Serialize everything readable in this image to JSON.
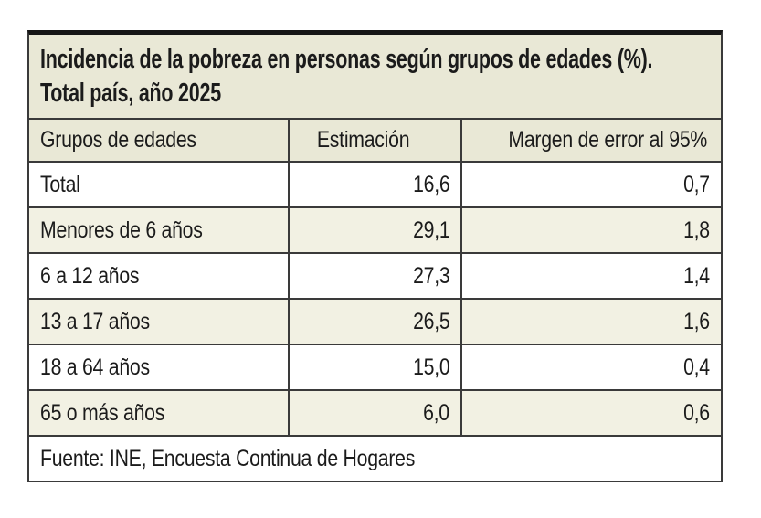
{
  "colors": {
    "band_background": "#e9e8d6",
    "alt_row_background": "#f2f1e3",
    "white_row_background": "#ffffff",
    "border": "#3a3a3a",
    "top_border": "#161616",
    "text": "#1b1b1b"
  },
  "table": {
    "title_line1": "Incidencia de la pobreza en personas según grupos de edades (%).",
    "title_line2": "Total país, año 2025",
    "columns": {
      "group": "Grupos de edades",
      "estimate": "Estimación",
      "margin": "Margen de error al 95%"
    },
    "rows": [
      {
        "label": "Total",
        "estimate": "16,6",
        "margin": "0,7"
      },
      {
        "label": "Menores de 6 años",
        "estimate": "29,1",
        "margin": "1,8"
      },
      {
        "label": "6 a 12 años",
        "estimate": "27,3",
        "margin": "1,4"
      },
      {
        "label": "13 a 17 años",
        "estimate": "26,5",
        "margin": "1,6"
      },
      {
        "label": "18 a 64 años",
        "estimate": "15,0",
        "margin": "0,4"
      },
      {
        "label": "65 o más años",
        "estimate": "6,0",
        "margin": "0,6"
      }
    ],
    "source": "Fuente: INE, Encuesta Continua de Hogares"
  },
  "chart_data": {
    "type": "table",
    "title": "Incidencia de la pobreza en personas según grupos de edades (%). Total país, año 2025",
    "columns": [
      "Grupos de edades",
      "Estimación",
      "Margen de error al 95%"
    ],
    "categories": [
      "Total",
      "Menores de 6 años",
      "6 a 12 años",
      "13 a 17 años",
      "18 a 64 años",
      "65 o más años"
    ],
    "series": [
      {
        "name": "Estimación",
        "values": [
          16.6,
          29.1,
          27.3,
          26.5,
          15.0,
          6.0
        ]
      },
      {
        "name": "Margen de error al 95%",
        "values": [
          0.7,
          1.8,
          1.4,
          1.6,
          0.4,
          0.6
        ]
      }
    ],
    "decimal_separator": ",",
    "source": "Fuente: INE, Encuesta Continua de Hogares",
    "layout": "striped-rows, numeric columns right-aligned, header band beige"
  }
}
